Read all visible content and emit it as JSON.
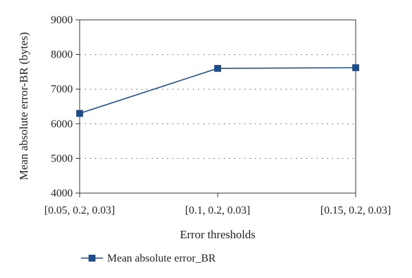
{
  "chart_data": {
    "type": "line",
    "title": "",
    "xlabel": "Error thresholds",
    "ylabel": "Mean absolute error-BR (bytes)",
    "categories": [
      "[0.05, 0.2, 0.03]",
      "[0.1, 0.2, 0.03]",
      "[0.15, 0.2, 0.03]"
    ],
    "series": [
      {
        "name": "Mean absolute error_BR",
        "values": [
          6300,
          7600,
          7620
        ],
        "color": "#1f4e8c",
        "marker": "square"
      }
    ],
    "ylim": [
      4000,
      9000
    ],
    "yticks": [
      4000,
      5000,
      6000,
      7000,
      8000,
      9000
    ],
    "grid": "horizontal dotted",
    "legend_position": "bottom-left"
  }
}
